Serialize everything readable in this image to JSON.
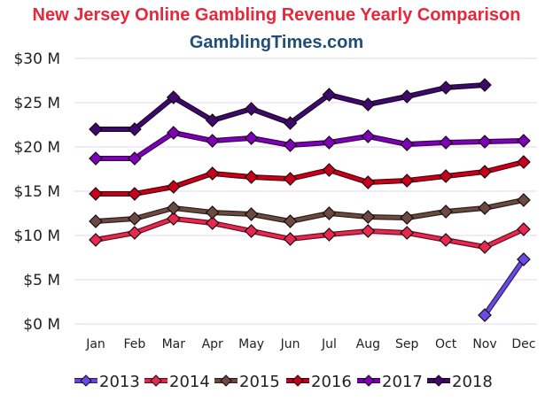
{
  "chart_data": {
    "type": "line",
    "title": "New Jersey Online Gambling Revenue Yearly Comparison",
    "subtitle": "GamblingTimes.com",
    "title_color": "#e8283a",
    "subtitle_color": "#1f4e79",
    "categories": [
      "Jan",
      "Feb",
      "Mar",
      "Apr",
      "May",
      "Jun",
      "Jul",
      "Aug",
      "Sep",
      "Oct",
      "Nov",
      "Dec"
    ],
    "ylim": [
      0,
      30
    ],
    "yticks": [
      {
        "value": 0,
        "label": "$0 M"
      },
      {
        "value": 5,
        "label": "$5 M"
      },
      {
        "value": 10,
        "label": "$10 M"
      },
      {
        "value": 15,
        "label": "$15 M"
      },
      {
        "value": 20,
        "label": "$20 M"
      },
      {
        "value": 25,
        "label": "$25 M"
      },
      {
        "value": 30,
        "label": "$30 M"
      }
    ],
    "grid": true,
    "legend_position": "bottom",
    "marker": "diamond",
    "series": [
      {
        "name": "2013",
        "color": "#6a4ae6",
        "values": [
          null,
          null,
          null,
          null,
          null,
          null,
          null,
          null,
          null,
          null,
          1.0,
          7.3
        ]
      },
      {
        "name": "2014",
        "color": "#e8284e",
        "values": [
          9.5,
          10.3,
          11.9,
          11.4,
          10.5,
          9.6,
          10.1,
          10.5,
          10.3,
          9.5,
          8.7,
          10.7
        ]
      },
      {
        "name": "2015",
        "color": "#6b4a40",
        "values": [
          11.6,
          11.9,
          13.1,
          12.6,
          12.4,
          11.6,
          12.5,
          12.1,
          12.0,
          12.7,
          13.1,
          14.0
        ]
      },
      {
        "name": "2016",
        "color": "#c8001a",
        "values": [
          14.7,
          14.7,
          15.5,
          17.0,
          16.6,
          16.4,
          17.4,
          16.0,
          16.2,
          16.7,
          17.2,
          18.3
        ]
      },
      {
        "name": "2017",
        "color": "#7e00b8",
        "values": [
          18.7,
          18.7,
          21.6,
          20.7,
          21.0,
          20.2,
          20.5,
          21.2,
          20.3,
          20.5,
          20.6,
          20.7
        ]
      },
      {
        "name": "2018",
        "color": "#3e0a6b",
        "values": [
          22.0,
          22.0,
          25.6,
          23.0,
          24.3,
          22.7,
          25.9,
          24.8,
          25.7,
          26.7,
          27.0,
          null
        ]
      }
    ]
  }
}
